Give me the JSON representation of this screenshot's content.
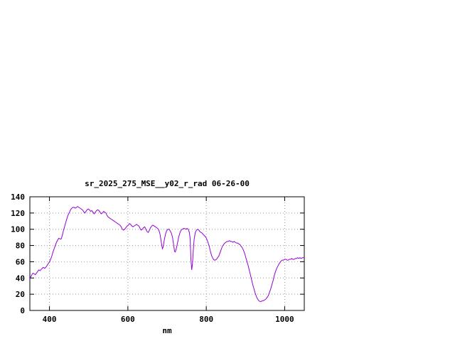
{
  "style": {
    "line_color": "#9400d3",
    "grid_color": "#999999",
    "border_color": "#000000",
    "text_color": "#000000",
    "background": "#ffffff"
  },
  "chart_data": {
    "type": "line",
    "title": "sr_2025_275_MSE__y02_r_rad 06-26-00",
    "xlabel": "nm",
    "ylabel": "",
    "xlim": [
      350,
      1050
    ],
    "ylim": [
      0,
      140
    ],
    "xticks": [
      400,
      600,
      800,
      1000
    ],
    "yticks": [
      0,
      20,
      40,
      60,
      80,
      100,
      120,
      140
    ],
    "grid": true,
    "legend": "none",
    "series": [
      {
        "name": "sr_2025_275_MSE__y02_r_rad",
        "points": [
          [
            350,
            38
          ],
          [
            352,
            41
          ],
          [
            355,
            44
          ],
          [
            358,
            46
          ],
          [
            361,
            45
          ],
          [
            364,
            44
          ],
          [
            367,
            46
          ],
          [
            370,
            48
          ],
          [
            373,
            50
          ],
          [
            376,
            49
          ],
          [
            380,
            51
          ],
          [
            384,
            53
          ],
          [
            388,
            52
          ],
          [
            392,
            54
          ],
          [
            396,
            57
          ],
          [
            400,
            60
          ],
          [
            403,
            63
          ],
          [
            406,
            67
          ],
          [
            409,
            72
          ],
          [
            412,
            76
          ],
          [
            415,
            80
          ],
          [
            418,
            84
          ],
          [
            421,
            87
          ],
          [
            424,
            89
          ],
          [
            427,
            88
          ],
          [
            430,
            88
          ],
          [
            433,
            93
          ],
          [
            436,
            99
          ],
          [
            439,
            104
          ],
          [
            442,
            109
          ],
          [
            445,
            114
          ],
          [
            448,
            118
          ],
          [
            451,
            121
          ],
          [
            454,
            124
          ],
          [
            457,
            126
          ],
          [
            460,
            127
          ],
          [
            463,
            127
          ],
          [
            466,
            126
          ],
          [
            469,
            127
          ],
          [
            472,
            128
          ],
          [
            475,
            127
          ],
          [
            478,
            126
          ],
          [
            481,
            125
          ],
          [
            484,
            124
          ],
          [
            487,
            122
          ],
          [
            490,
            120
          ],
          [
            493,
            122
          ],
          [
            496,
            124
          ],
          [
            499,
            125
          ],
          [
            502,
            124
          ],
          [
            505,
            122
          ],
          [
            508,
            123
          ],
          [
            511,
            121
          ],
          [
            514,
            119
          ],
          [
            517,
            121
          ],
          [
            520,
            123
          ],
          [
            523,
            124
          ],
          [
            526,
            123
          ],
          [
            529,
            121
          ],
          [
            532,
            119
          ],
          [
            535,
            120
          ],
          [
            538,
            122
          ],
          [
            541,
            121
          ],
          [
            544,
            120
          ],
          [
            547,
            117
          ],
          [
            550,
            115
          ],
          [
            553,
            114
          ],
          [
            556,
            113
          ],
          [
            559,
            112
          ],
          [
            562,
            111
          ],
          [
            565,
            110
          ],
          [
            568,
            109
          ],
          [
            571,
            108
          ],
          [
            574,
            107
          ],
          [
            577,
            106
          ],
          [
            580,
            105
          ],
          [
            583,
            103
          ],
          [
            586,
            100
          ],
          [
            589,
            99
          ],
          [
            592,
            100
          ],
          [
            595,
            102
          ],
          [
            598,
            104
          ],
          [
            601,
            105
          ],
          [
            604,
            107
          ],
          [
            607,
            106
          ],
          [
            610,
            104
          ],
          [
            613,
            103
          ],
          [
            616,
            104
          ],
          [
            619,
            105
          ],
          [
            622,
            106
          ],
          [
            625,
            105
          ],
          [
            628,
            104
          ],
          [
            631,
            101
          ],
          [
            634,
            99
          ],
          [
            637,
            100
          ],
          [
            640,
            102
          ],
          [
            643,
            103
          ],
          [
            646,
            100
          ],
          [
            649,
            97
          ],
          [
            652,
            96
          ],
          [
            655,
            99
          ],
          [
            658,
            102
          ],
          [
            661,
            104
          ],
          [
            664,
            105
          ],
          [
            667,
            104
          ],
          [
            670,
            103
          ],
          [
            673,
            102
          ],
          [
            676,
            101
          ],
          [
            679,
            99
          ],
          [
            682,
            94
          ],
          [
            685,
            85
          ],
          [
            688,
            76
          ],
          [
            690,
            78
          ],
          [
            693,
            87
          ],
          [
            696,
            94
          ],
          [
            699,
            98
          ],
          [
            702,
            100
          ],
          [
            705,
            100
          ],
          [
            708,
            98
          ],
          [
            711,
            95
          ],
          [
            714,
            90
          ],
          [
            717,
            80
          ],
          [
            719,
            73
          ],
          [
            721,
            72
          ],
          [
            724,
            77
          ],
          [
            727,
            84
          ],
          [
            730,
            91
          ],
          [
            733,
            96
          ],
          [
            736,
            99
          ],
          [
            739,
            100
          ],
          [
            742,
            101
          ],
          [
            745,
            101
          ],
          [
            748,
            100
          ],
          [
            751,
            101
          ],
          [
            754,
            100
          ],
          [
            757,
            96
          ],
          [
            759,
            88
          ],
          [
            761,
            62
          ],
          [
            763,
            50
          ],
          [
            765,
            58
          ],
          [
            767,
            74
          ],
          [
            769,
            87
          ],
          [
            772,
            96
          ],
          [
            775,
            99
          ],
          [
            778,
            100
          ],
          [
            781,
            99
          ],
          [
            784,
            97
          ],
          [
            787,
            96
          ],
          [
            790,
            95
          ],
          [
            793,
            93
          ],
          [
            796,
            92
          ],
          [
            799,
            90
          ],
          [
            802,
            87
          ],
          [
            805,
            83
          ],
          [
            808,
            78
          ],
          [
            811,
            72
          ],
          [
            814,
            67
          ],
          [
            817,
            64
          ],
          [
            820,
            62
          ],
          [
            823,
            62
          ],
          [
            826,
            63
          ],
          [
            829,
            65
          ],
          [
            832,
            67
          ],
          [
            835,
            71
          ],
          [
            838,
            75
          ],
          [
            841,
            79
          ],
          [
            844,
            81
          ],
          [
            847,
            83
          ],
          [
            850,
            84
          ],
          [
            853,
            85
          ],
          [
            856,
            85
          ],
          [
            859,
            86
          ],
          [
            862,
            85
          ],
          [
            865,
            85
          ],
          [
            868,
            84
          ],
          [
            871,
            85
          ],
          [
            874,
            84
          ],
          [
            877,
            83
          ],
          [
            880,
            83
          ],
          [
            883,
            82
          ],
          [
            886,
            81
          ],
          [
            889,
            79
          ],
          [
            892,
            77
          ],
          [
            895,
            74
          ],
          [
            898,
            70
          ],
          [
            901,
            65
          ],
          [
            904,
            60
          ],
          [
            907,
            55
          ],
          [
            910,
            49
          ],
          [
            913,
            43
          ],
          [
            916,
            37
          ],
          [
            919,
            31
          ],
          [
            922,
            26
          ],
          [
            925,
            21
          ],
          [
            928,
            17
          ],
          [
            931,
            14
          ],
          [
            934,
            12
          ],
          [
            937,
            11
          ],
          [
            940,
            11
          ],
          [
            943,
            12
          ],
          [
            946,
            12
          ],
          [
            949,
            13
          ],
          [
            952,
            14
          ],
          [
            955,
            16
          ],
          [
            958,
            18
          ],
          [
            961,
            22
          ],
          [
            964,
            26
          ],
          [
            967,
            31
          ],
          [
            970,
            36
          ],
          [
            973,
            42
          ],
          [
            976,
            47
          ],
          [
            979,
            51
          ],
          [
            982,
            54
          ],
          [
            985,
            57
          ],
          [
            988,
            59
          ],
          [
            991,
            61
          ],
          [
            994,
            62
          ],
          [
            997,
            62
          ],
          [
            1000,
            63
          ],
          [
            1003,
            63
          ],
          [
            1006,
            62
          ],
          [
            1009,
            62
          ],
          [
            1012,
            63
          ],
          [
            1015,
            63
          ],
          [
            1018,
            64
          ],
          [
            1021,
            63
          ],
          [
            1024,
            63
          ],
          [
            1027,
            64
          ],
          [
            1030,
            64
          ],
          [
            1033,
            65
          ],
          [
            1036,
            64
          ],
          [
            1039,
            65
          ],
          [
            1042,
            64
          ],
          [
            1045,
            65
          ],
          [
            1048,
            65
          ],
          [
            1050,
            65
          ]
        ]
      }
    ]
  }
}
